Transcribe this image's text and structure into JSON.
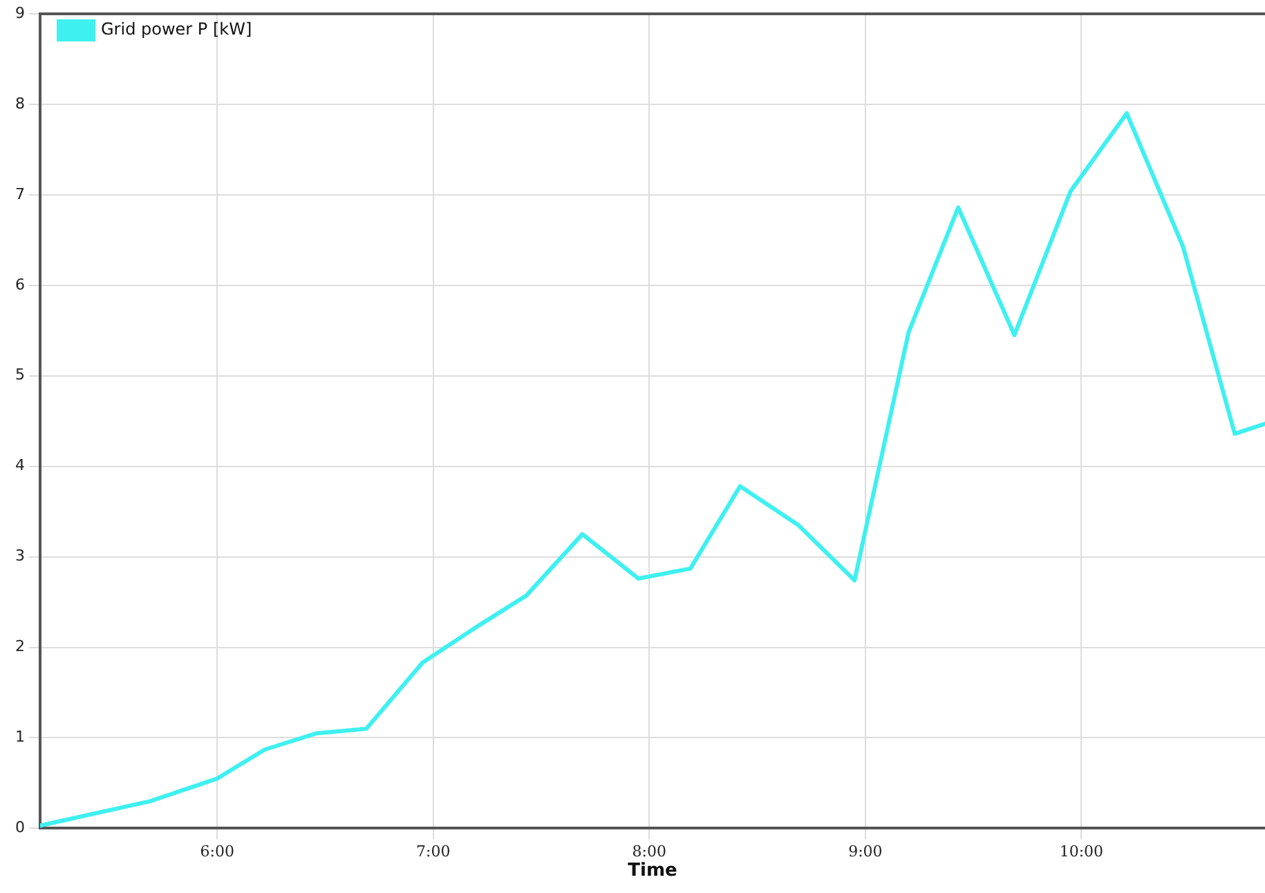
{
  "chart_data": {
    "type": "line",
    "xlabel": "Time",
    "x": [
      5.18,
      5.69,
      6.0,
      6.22,
      6.46,
      6.69,
      6.95,
      7.21,
      7.43,
      7.69,
      7.95,
      8.19,
      8.42,
      8.69,
      8.95,
      9.2,
      9.43,
      9.69,
      9.95,
      10.21,
      10.47,
      10.71,
      10.85
    ],
    "series": [
      {
        "name": "Grid power P [kW]",
        "color": "#3ff0f0",
        "values": [
          0.03,
          0.3,
          0.55,
          0.87,
          1.05,
          1.1,
          1.83,
          2.24,
          2.57,
          3.25,
          2.76,
          2.87,
          3.78,
          3.35,
          2.74,
          5.48,
          6.86,
          5.45,
          7.04,
          7.9,
          6.43,
          4.36,
          4.47
        ]
      }
    ],
    "xlim": [
      5.18,
      10.85
    ],
    "xticks": [
      {
        "value": 6,
        "label": "6:00"
      },
      {
        "value": 7,
        "label": "7:00"
      },
      {
        "value": 8,
        "label": "8:00"
      },
      {
        "value": 9,
        "label": "9:00"
      },
      {
        "value": 10,
        "label": "10:00"
      }
    ],
    "ylim": [
      0,
      9
    ],
    "yticks": [
      0,
      1,
      2,
      3,
      4,
      5,
      6,
      7,
      8,
      9
    ],
    "grid": true,
    "legend": "top left",
    "marker": "none",
    "line_style": "solid"
  }
}
